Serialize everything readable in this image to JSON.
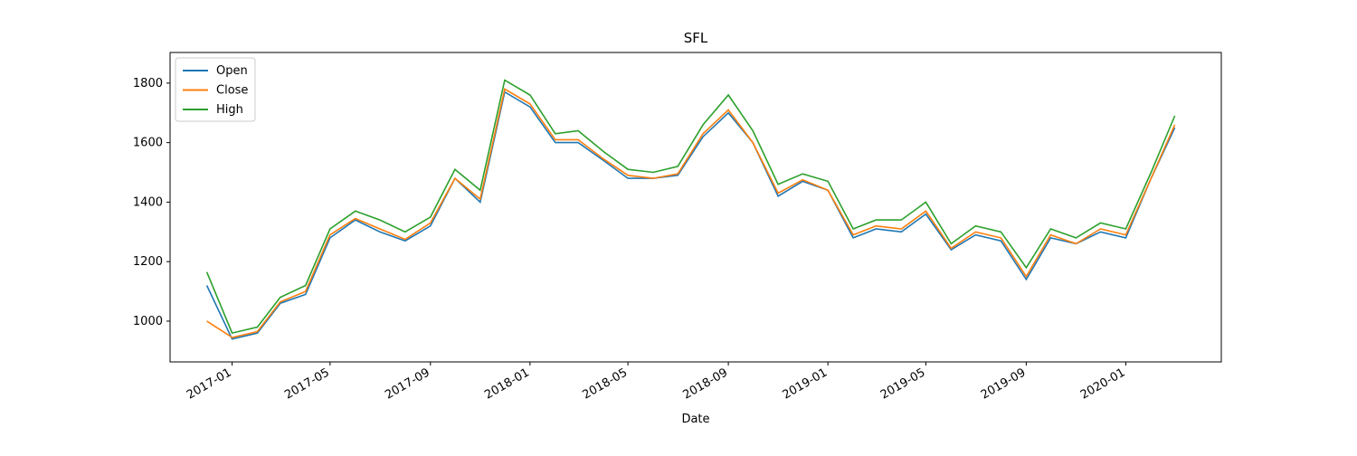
{
  "chart_data": {
    "type": "line",
    "title": "SFL",
    "x_label": "Date",
    "x": [
      "2016-12",
      "2017-01",
      "2017-02",
      "2017-03",
      "2017-04",
      "2017-05",
      "2017-06",
      "2017-07",
      "2017-08",
      "2017-09",
      "2017-10",
      "2017-11",
      "2017-12",
      "2018-01",
      "2018-02",
      "2018-03",
      "2018-04",
      "2018-05",
      "2018-06",
      "2018-07",
      "2018-08",
      "2018-09",
      "2018-10",
      "2018-11",
      "2018-12",
      "2019-01",
      "2019-02",
      "2019-03",
      "2019-04",
      "2019-05",
      "2019-06",
      "2019-07",
      "2019-08",
      "2019-09",
      "2019-10",
      "2019-11",
      "2019-12",
      "2020-01",
      "2020-02",
      "2020-03"
    ],
    "series": [
      {
        "name": "Open",
        "color": "#1f77b4",
        "values": [
          1120,
          940,
          960,
          1060,
          1090,
          1280,
          1340,
          1300,
          1270,
          1320,
          1480,
          1400,
          1770,
          1720,
          1600,
          1600,
          1540,
          1480,
          1480,
          1490,
          1620,
          1700,
          1600,
          1420,
          1470,
          1440,
          1280,
          1310,
          1300,
          1360,
          1240,
          1290,
          1270,
          1140,
          1280,
          1260,
          1300,
          1280,
          1480,
          1650
        ]
      },
      {
        "name": "Close",
        "color": "#ff7f0e",
        "values": [
          1000,
          945,
          965,
          1065,
          1100,
          1290,
          1345,
          1310,
          1275,
          1330,
          1480,
          1410,
          1780,
          1730,
          1610,
          1610,
          1545,
          1490,
          1480,
          1495,
          1630,
          1710,
          1600,
          1430,
          1475,
          1440,
          1290,
          1320,
          1310,
          1370,
          1245,
          1300,
          1280,
          1150,
          1290,
          1260,
          1310,
          1290,
          1480,
          1660
        ]
      },
      {
        "name": "High",
        "color": "#2ca02c",
        "values": [
          1165,
          960,
          980,
          1080,
          1120,
          1310,
          1370,
          1340,
          1300,
          1350,
          1510,
          1440,
          1810,
          1760,
          1630,
          1640,
          1570,
          1510,
          1500,
          1520,
          1660,
          1760,
          1640,
          1460,
          1495,
          1470,
          1310,
          1340,
          1340,
          1400,
          1260,
          1320,
          1300,
          1180,
          1310,
          1280,
          1330,
          1310,
          1500,
          1690
        ]
      }
    ],
    "xlim": [
      "2016-10-17",
      "2020-04-27"
    ],
    "xticks": [
      "2017-01",
      "2017-05",
      "2017-09",
      "2018-01",
      "2018-05",
      "2018-09",
      "2019-01",
      "2019-05",
      "2019-09",
      "2020-01"
    ],
    "ylim": [
      863,
      1903
    ],
    "yticks": [
      1000,
      1200,
      1400,
      1600,
      1800
    ],
    "legend": "upper left"
  }
}
